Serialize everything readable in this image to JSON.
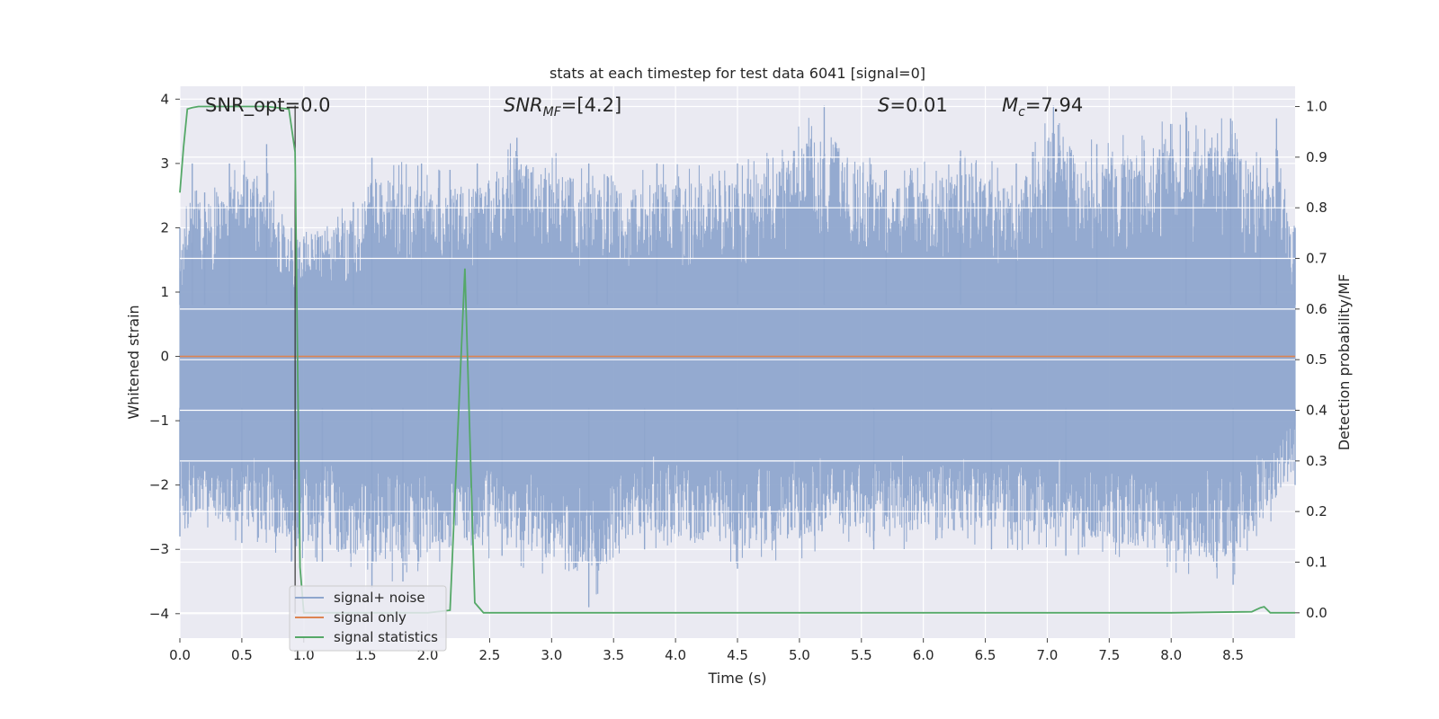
{
  "chart_data": {
    "type": "line",
    "title": "stats at each timestep for test data 6041 [signal=0]",
    "xlabel": "Time (s)",
    "ylabel_left": "Whitened strain",
    "ylabel_right": "Detection probability/MF",
    "xlim": [
      0.0,
      9.0
    ],
    "ylim_left": [
      -4.38,
      4.2
    ],
    "ylim_right": [
      -0.05,
      1.04
    ],
    "x_ticks": [
      "0.0",
      "0.5",
      "1.0",
      "1.5",
      "2.0",
      "2.5",
      "3.0",
      "3.5",
      "4.0",
      "4.5",
      "5.0",
      "5.5",
      "6.0",
      "6.5",
      "7.0",
      "7.5",
      "8.0",
      "8.5"
    ],
    "y_ticks_left": [
      "4",
      "3",
      "2",
      "1",
      "0",
      "−1",
      "−2",
      "−3",
      "−4"
    ],
    "y_ticks_right": [
      "1.0",
      "0.9",
      "0.8",
      "0.7",
      "0.6",
      "0.5",
      "0.4",
      "0.3",
      "0.2",
      "0.1",
      "0.0"
    ],
    "grid": true,
    "legend_position": "lower-left",
    "annotations": {
      "snr_opt": "SNR_opt=0.0",
      "snr_mf_main": "SNR",
      "snr_mf_sub": "MF",
      "snr_mf_value": "=[4.2]",
      "s_symbol": "S",
      "s_value": "=0.01",
      "mc_symbol": "M",
      "mc_sub": "c",
      "mc_value": "=7.94"
    },
    "vertical_marker_x": 0.93,
    "series": [
      {
        "name": "signal+ noise",
        "color": "#8fa6cd",
        "axis": "left",
        "description_of_values": "dense whitened noise, roughly within ±2.5 with spikes to ±3.8",
        "envelope_peaks": [
          [
            0.0,
            2.0
          ],
          [
            0.1,
            3.0
          ],
          [
            0.2,
            2.55
          ],
          [
            0.4,
            3.0
          ],
          [
            0.7,
            3.3
          ],
          [
            0.9,
            2.0
          ],
          [
            1.4,
            2.4
          ],
          [
            1.55,
            3.1
          ],
          [
            1.95,
            3.0
          ],
          [
            2.18,
            2.9
          ],
          [
            2.4,
            3.0
          ],
          [
            2.72,
            3.4
          ],
          [
            3.3,
            3.0
          ],
          [
            3.45,
            2.8
          ],
          [
            3.85,
            3.0
          ],
          [
            4.5,
            3.0
          ],
          [
            5.2,
            3.9
          ],
          [
            5.7,
            2.9
          ],
          [
            6.3,
            3.2
          ],
          [
            6.75,
            3.0
          ],
          [
            7.05,
            3.9
          ],
          [
            7.4,
            3.3
          ],
          [
            8.12,
            3.8
          ],
          [
            8.48,
            3.7
          ],
          [
            8.72,
            3.1
          ],
          [
            8.85,
            3.7
          ],
          [
            9.0,
            2.0
          ]
        ],
        "envelope_troughs": [
          [
            0.0,
            -2.8
          ],
          [
            0.5,
            -2.9
          ],
          [
            0.9,
            -3.2
          ],
          [
            1.15,
            -3.2
          ],
          [
            1.55,
            -3.6
          ],
          [
            1.8,
            -3.5
          ],
          [
            2.6,
            -3.1
          ],
          [
            3.3,
            -3.9
          ],
          [
            3.75,
            -3.0
          ],
          [
            4.5,
            -3.3
          ],
          [
            5.6,
            -3.0
          ],
          [
            6.55,
            -3.0
          ],
          [
            7.15,
            -3.1
          ],
          [
            8.5,
            -3.55
          ],
          [
            9.0,
            -2.0
          ]
        ]
      },
      {
        "name": "signal only",
        "color": "#dd8452",
        "axis": "left",
        "x": [
          0.0,
          9.0
        ],
        "y": [
          0.0,
          0.0
        ]
      },
      {
        "name": "signal statistics",
        "color": "#55a868",
        "axis": "right",
        "x": [
          0.0,
          0.03,
          0.06,
          0.1,
          0.15,
          0.3,
          0.5,
          0.7,
          0.88,
          0.93,
          0.97,
          1.0,
          1.2,
          1.6,
          2.0,
          2.18,
          2.3,
          2.38,
          2.45,
          2.6,
          4.0,
          6.0,
          8.0,
          8.65,
          8.72,
          8.75,
          8.8,
          8.9,
          9.0
        ],
        "y": [
          0.83,
          0.92,
          0.995,
          0.998,
          1.0,
          1.0,
          1.0,
          1.0,
          0.995,
          0.91,
          0.09,
          0.0,
          0.0,
          0.0,
          0.0,
          0.005,
          0.68,
          0.02,
          0.0,
          0.0,
          0.0,
          0.0,
          0.0,
          0.002,
          0.01,
          0.012,
          0.0,
          0.0,
          0.0
        ]
      }
    ]
  }
}
